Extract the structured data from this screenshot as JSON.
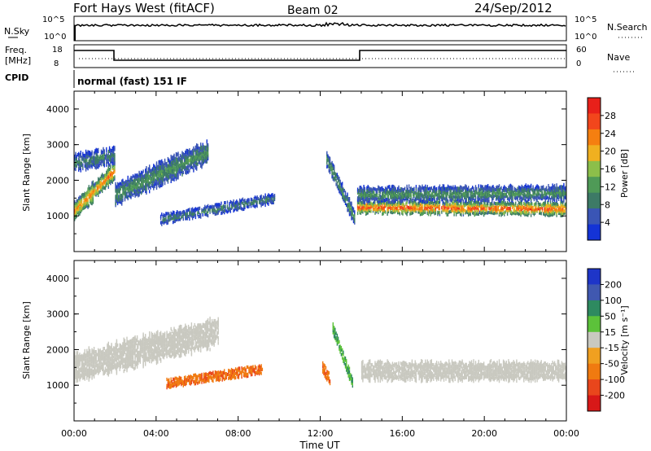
{
  "header": {
    "station": "Fort Hays West (fitACF)",
    "beam": "Beam 02",
    "date": "24/Sep/2012"
  },
  "top_panel": {
    "nsky_label": "N.Sky",
    "nsky_ticks": [
      "10^5",
      "10^0"
    ],
    "nsearch_label": "N.Search",
    "nsearch_ticks": [
      "10^5",
      "10^0"
    ],
    "freq_label": "Freq.",
    "freq_unit": "[MHz]",
    "freq_ticks": [
      "18",
      "8"
    ],
    "nave_label": "Nave",
    "nave_ticks": [
      "60",
      "0"
    ],
    "cpid_label": "CPID",
    "cpid_text": "normal (fast) 151 IF"
  },
  "colors": {
    "power": [
      "#1433d6",
      "#3a55b5",
      "#3d7a66",
      "#4f9a57",
      "#8cbf4a",
      "#f0b020",
      "#f57f10",
      "#f2461c",
      "#e8201a"
    ],
    "velocity": [
      "#1e35c8",
      "#4058b0",
      "#2e8a60",
      "#5cc23a",
      "#c9c9c0",
      "#f0a020",
      "#f07a10",
      "#e9461c",
      "#d81818"
    ]
  },
  "chart_data": [
    {
      "type": "heatmap",
      "name": "power",
      "ylabel": "Slant Range [km]",
      "ylim": [
        0,
        4500
      ],
      "yticks": [
        "1000",
        "2000",
        "3000",
        "4000"
      ],
      "xlim": [
        0,
        24
      ],
      "colorbar_label": "Power [dB]",
      "colorbar_ticks": [
        "4",
        "8",
        "12",
        "16",
        "20",
        "24",
        "28"
      ],
      "features": [
        {
          "t_start": 0.0,
          "t_end": 2.0,
          "range_start": 1150,
          "range_end": 2300,
          "band_km": 450,
          "value": 24
        },
        {
          "t_start": 0.0,
          "t_end": 2.0,
          "range_start": 2500,
          "range_end": 2700,
          "band_km": 400,
          "value": 10
        },
        {
          "t_start": 2.0,
          "t_end": 6.5,
          "range_start": 1600,
          "range_end": 2800,
          "band_km": 550,
          "value": 12
        },
        {
          "t_start": 4.2,
          "t_end": 9.8,
          "range_start": 900,
          "range_end": 1500,
          "band_km": 220,
          "value": 10
        },
        {
          "t_start": 12.3,
          "t_end": 13.7,
          "range_start": 2600,
          "range_end": 900,
          "band_km": 350,
          "value": 12
        },
        {
          "t_start": 13.8,
          "t_end": 24.0,
          "range_start": 1250,
          "range_end": 1200,
          "band_km": 300,
          "value": 27
        },
        {
          "t_start": 13.8,
          "t_end": 24.0,
          "range_start": 1600,
          "range_end": 1650,
          "band_km": 350,
          "value": 12
        }
      ]
    },
    {
      "type": "heatmap",
      "name": "velocity",
      "ylabel": "Slant Range [km]",
      "ylim": [
        0,
        4500
      ],
      "yticks": [
        "1000",
        "2000",
        "3000",
        "4000"
      ],
      "xlim": [
        0,
        24
      ],
      "xlabel": "Time UT",
      "xticks": [
        "00:00",
        "04:00",
        "08:00",
        "12:00",
        "16:00",
        "20:00",
        "00:00"
      ],
      "colorbar_label": "Velocity [m s⁻¹]",
      "colorbar_ticks": [
        "200",
        "100",
        "50",
        "15",
        "-15",
        "-50",
        "-100",
        "-200"
      ],
      "features": [
        {
          "t_start": 0.0,
          "t_end": 7.0,
          "range_start": 1500,
          "range_end": 2500,
          "band_km": 700,
          "value": 0
        },
        {
          "t_start": 4.5,
          "t_end": 9.2,
          "range_start": 1050,
          "range_end": 1450,
          "band_km": 200,
          "value": -70
        },
        {
          "t_start": 12.1,
          "t_end": 12.5,
          "range_start": 1500,
          "range_end": 1100,
          "band_km": 250,
          "value": -70
        },
        {
          "t_start": 12.6,
          "t_end": 13.6,
          "range_start": 2600,
          "range_end": 1000,
          "band_km": 250,
          "value": 30
        },
        {
          "t_start": 14.0,
          "t_end": 24.0,
          "range_start": 1400,
          "range_end": 1400,
          "band_km": 450,
          "value": 0
        }
      ]
    }
  ]
}
